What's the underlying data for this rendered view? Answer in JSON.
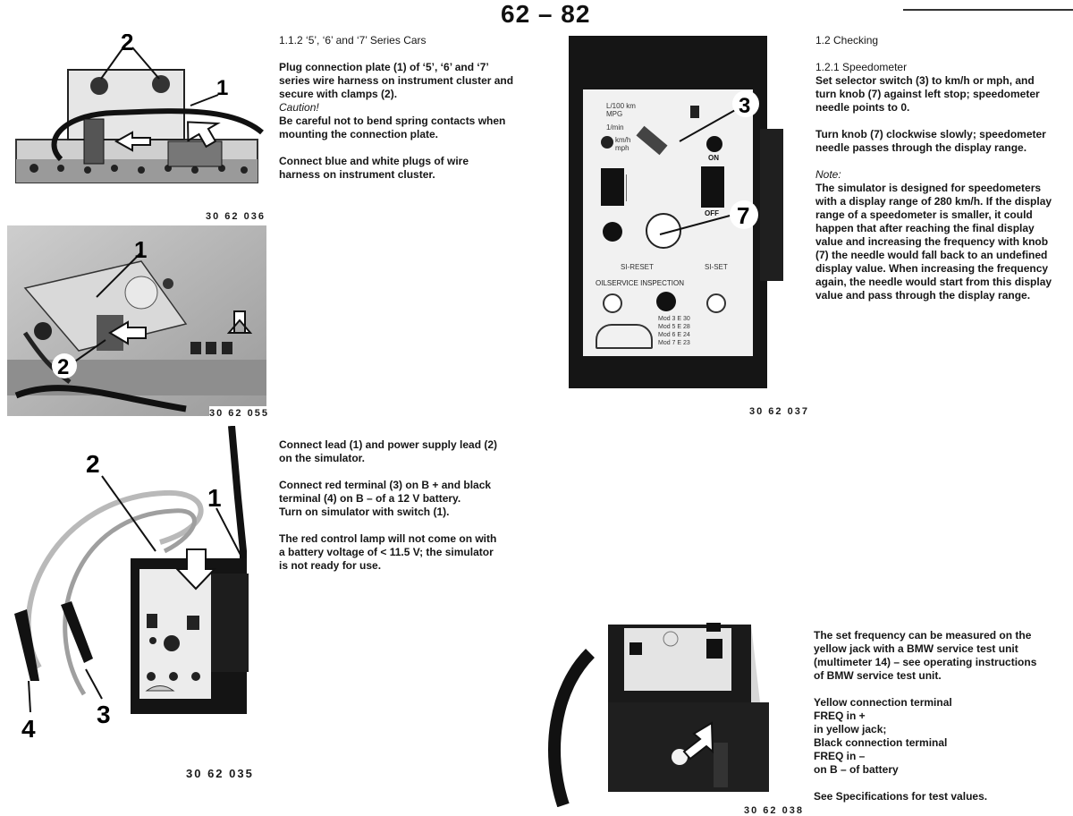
{
  "header": {
    "page_number": "62 – 82"
  },
  "section_112": {
    "heading": "1.1.2   ‘5’, ‘6’ and ‘7’ Series Cars",
    "p1_lines": [
      "Plug connection plate (1) of ‘5’, ‘6’ and ‘7’",
      "series wire harness on instrument cluster and",
      "secure with clamps (2)."
    ],
    "caution_label": "Caution!",
    "caution_lines": [
      "Be careful not to bend spring contacts when",
      "mounting the connection plate."
    ],
    "p2_lines": [
      "Connect blue and white plugs of wire",
      "harness on instrument cluster."
    ]
  },
  "section_connect": {
    "p1_lines": [
      "Connect lead (1) and power supply lead (2)",
      "on the simulator."
    ],
    "p2_lines": [
      "Connect red terminal (3) on B + and black",
      "terminal (4) on B – of a 12 V battery.",
      "Turn on simulator with switch (1)."
    ],
    "p3_lines": [
      "The red control lamp will not come on with",
      "a battery voltage of < 11.5 V; the simulator",
      "is not ready for use."
    ]
  },
  "section_12": {
    "heading": "1.2      Checking",
    "subheading": "1.2.1   Speedometer",
    "p1_lines": [
      "Set selector switch (3) to km/h or mph, and",
      "turn knob (7) against left stop; speedometer",
      "needle points to 0."
    ],
    "p2_lines": [
      "Turn knob (7) clockwise slowly; speedometer",
      "needle passes through the display range."
    ],
    "note_label": "Note:",
    "note_lines": [
      "The simulator is designed for speedometers",
      "with a display range of 280 km/h. If the display",
      "range of a speedometer is smaller, it could",
      "happen that after reaching the final display",
      "value and increasing the frequency with knob",
      "(7) the needle would fall back to an undefined",
      "display value. When increasing the frequency",
      "again, the needle would start from this display",
      "value and pass through the display range."
    ]
  },
  "section_freq": {
    "p1_lines": [
      "The set frequency can be measured on the",
      "yellow jack with a BMW service test unit",
      "(multimeter 14) – see operating instructions",
      "of BMW service test unit."
    ],
    "p2_lines": [
      "Yellow connection terminal",
      "FREQ in +",
      "in yellow jack;",
      "Black connection terminal",
      "FREQ in –",
      "on B – of battery"
    ],
    "p3_lines": [
      "See Specifications for test values."
    ]
  },
  "captions": {
    "fig1": "30 62 036",
    "fig2": "30 62 055",
    "fig3": "30 62 035",
    "fig4": "30 62 037",
    "fig5": "30 62 038"
  },
  "callouts": {
    "fig1": [
      "2",
      "1"
    ],
    "fig2": [
      "1",
      "2"
    ],
    "fig3": [
      "2",
      "1",
      "4",
      "3"
    ],
    "fig4": [
      "3",
      "7"
    ]
  },
  "device_panel": {
    "top_labels": [
      "L/100 km",
      "MPG",
      "1/min"
    ],
    "unit_labels": [
      "km/h",
      "mph"
    ],
    "on_label": "ON",
    "off_label": "OFF",
    "si_reset": "SI-RESET",
    "si_set": "SI-SET",
    "oilservice": "OILSERVICE  INSPECTION",
    "mod_lines": [
      "Mod 3   E 30",
      "Mod 5   E 28",
      "Mod 6   E 24",
      "Mod 7   E 23"
    ]
  }
}
